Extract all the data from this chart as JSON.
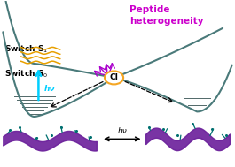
{
  "switch_s1_label": "Switch S$_1$",
  "switch_s0_label": "Switch S$_0$",
  "peptide_label": "Peptide\nheterogeneity",
  "ci_label": "CI",
  "hv_label": "hν",
  "bg_color": "#ffffff",
  "curve_color": "#4a7a7a",
  "ci_circle_color": "#f5a623",
  "ci_text_color": "#000000",
  "s1_label_color": "#000000",
  "s0_label_color": "#000000",
  "peptide_label_color": "#cc00cc",
  "hv_arrow_color": "#00cfff",
  "hv_text_color": "#00cfff",
  "orange_wave_color": "#e8a000",
  "purple_arrow_color": "#aa00cc",
  "dashed_arrow_color": "#000000",
  "bottom_arrow_color": "#000000",
  "vib_color": "#506868",
  "helix_color": "#6a1e9a",
  "teal_color": "#007070"
}
